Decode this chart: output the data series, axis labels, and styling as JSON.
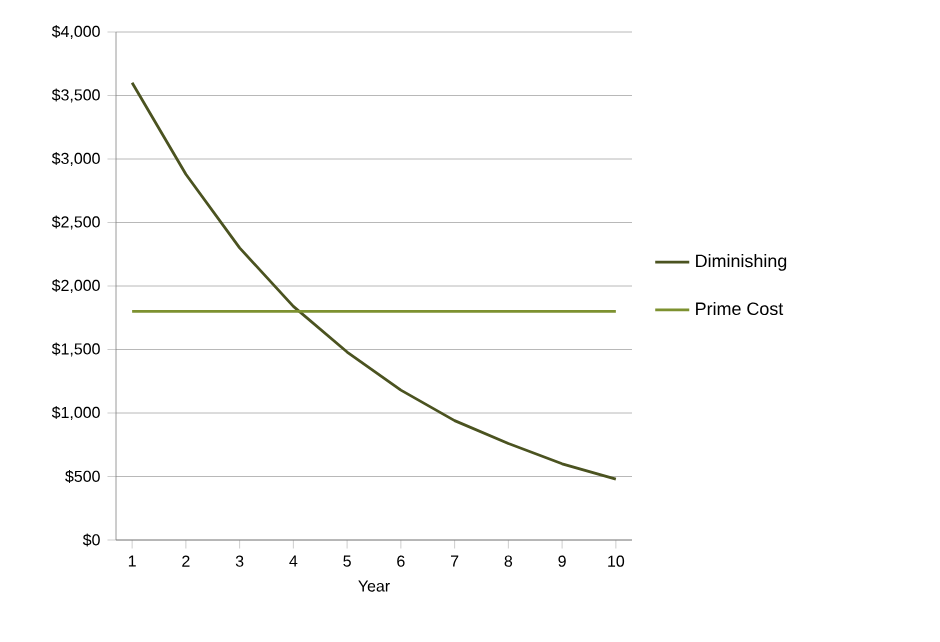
{
  "chart_data": {
    "type": "line",
    "xlabel": "Year",
    "x": [
      1,
      2,
      3,
      4,
      5,
      6,
      7,
      8,
      9,
      10
    ],
    "series": [
      {
        "name": "Diminishing",
        "color": "#4b5320",
        "values": [
          3600,
          2880,
          2300,
          1840,
          1480,
          1180,
          940,
          760,
          600,
          480
        ]
      },
      {
        "name": "Prime Cost",
        "color": "#7d9130",
        "values": [
          1800,
          1800,
          1800,
          1800,
          1800,
          1800,
          1800,
          1800,
          1800,
          1800
        ]
      }
    ],
    "xlim": [
      0.7,
      10.3
    ],
    "xticks": [
      1,
      2,
      3,
      4,
      5,
      6,
      7,
      8,
      9,
      10
    ],
    "ylim": [
      0,
      4000
    ],
    "yticks": [
      {
        "value": 0,
        "label": "$0"
      },
      {
        "value": 500,
        "label": "$500"
      },
      {
        "value": 1000,
        "label": "$1,000"
      },
      {
        "value": 1500,
        "label": "$1,500"
      },
      {
        "value": 2000,
        "label": "$2,000"
      },
      {
        "value": 2500,
        "label": "$2,500"
      },
      {
        "value": 3000,
        "label": "$3,000"
      },
      {
        "value": 3500,
        "label": "$3,500"
      },
      {
        "value": 4000,
        "label": "$4,000"
      }
    ],
    "grid": "y",
    "legend": "right",
    "marker": "none",
    "line_style": "solid"
  }
}
